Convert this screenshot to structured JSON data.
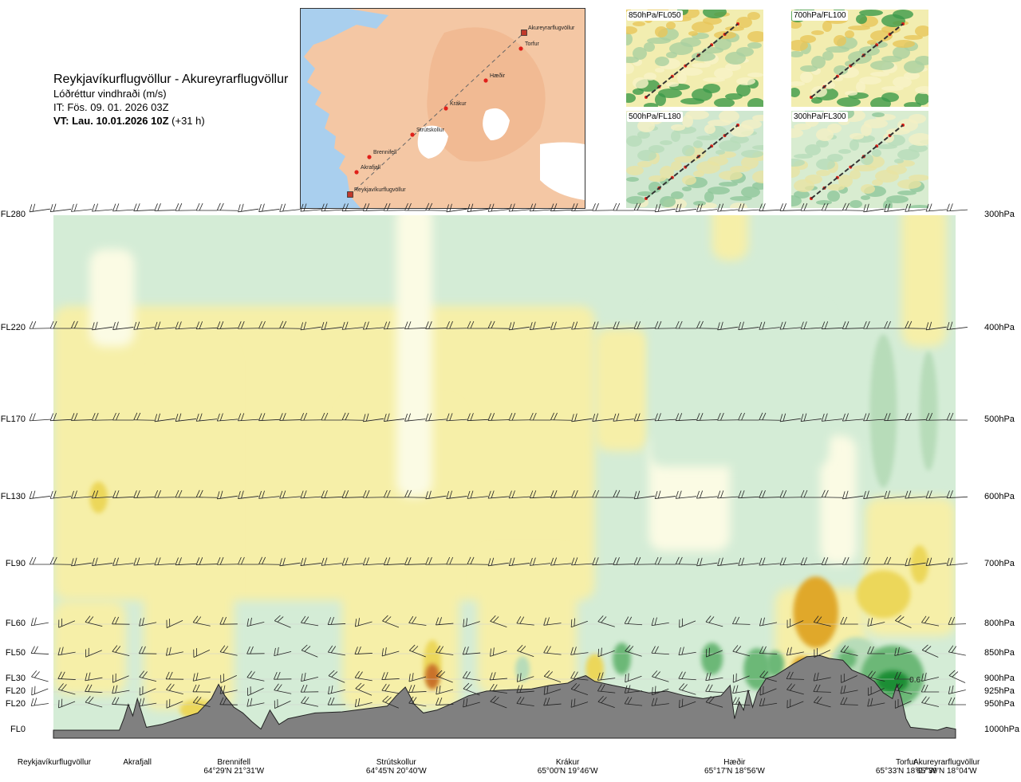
{
  "header": {
    "route": "Reykjavíkurflugvöllur - Akureyrarflugvöllur",
    "variable": "Lóðréttur vindhraði (m/s)",
    "init_time": "IT: Fös. 09. 01. 2026 03Z",
    "valid_label": "VT: Lau. 10.01.2026 10Z",
    "valid_offset": "(+31 h)"
  },
  "map": {
    "points": [
      {
        "name": "Akureyrarflugvöllur",
        "marker": "square"
      },
      {
        "name": "Torfur",
        "marker": "circle"
      },
      {
        "name": "Hæðir",
        "marker": "circle"
      },
      {
        "name": "Krákur",
        "marker": "circle"
      },
      {
        "name": "Strútskollur",
        "marker": "circle"
      },
      {
        "name": "Brennifell",
        "marker": "circle"
      },
      {
        "name": "Akrafjall",
        "marker": "circle"
      },
      {
        "name": "Reykjavíkurflugvöllur",
        "marker": "square"
      }
    ],
    "colors": {
      "land": "#f4c7a4",
      "sea": "#a9cfee",
      "glacier": "#ffffff",
      "route": "#666666",
      "point": "#e0201a"
    }
  },
  "thumbnails": [
    {
      "label": "850hPa/FL050"
    },
    {
      "label": "700hPa/FL100"
    },
    {
      "label": "500hPa/FL180"
    },
    {
      "label": "300hPa/FL300"
    }
  ],
  "chart_data": {
    "type": "heatmap",
    "title": "Lóðréttur vindhraði (m/s)",
    "left_levels": [
      "FL280",
      "FL220",
      "FL170",
      "FL130",
      "FL90",
      "FL60",
      "FL50",
      "FL30",
      "FL20",
      "FL20",
      "FL0"
    ],
    "right_levels": [
      "300hPa",
      "400hPa",
      "500hPa",
      "600hPa",
      "700hPa",
      "800hPa",
      "850hPa",
      "900hPa",
      "925hPa",
      "950hPa",
      "1000hPa"
    ],
    "pressure_hpa": [
      300,
      400,
      500,
      600,
      700,
      800,
      850,
      900,
      925,
      950,
      1000
    ],
    "stations": [
      {
        "name": "Reykjavíkurflugvöllur",
        "coord": "",
        "dist": 0.0
      },
      {
        "name": "Akrafjall",
        "coord": "",
        "dist": 0.093
      },
      {
        "name": "Brennifell",
        "coord": "64°29'N 21°31'W",
        "dist": 0.2
      },
      {
        "name": "Strútskollur",
        "coord": "64°45'N 20°40'W",
        "dist": 0.38
      },
      {
        "name": "Krákur",
        "coord": "65°00'N 19°46'W",
        "dist": 0.57
      },
      {
        "name": "Hæðir",
        "coord": "65°17'N 18°56'W",
        "dist": 0.755
      },
      {
        "name": "Torfur",
        "coord": "65°33'N 18°07'W",
        "dist": 0.945
      },
      {
        "name": "Akureyrarflugvöllur",
        "coord": "65°39'N 18°04'W",
        "dist": 0.99
      }
    ],
    "annotations": [
      {
        "text": "0.6",
        "dist": 0.955,
        "pressure_hpa": 900
      }
    ],
    "colors": {
      "strong_down": "#1e8e35",
      "mod_down": "#6cb877",
      "weak_down": "#b7dcb9",
      "very_weak_down": "#d4ecd6",
      "near_zero": "#fbfbe4",
      "weak_up": "#f6efa8",
      "mod_up": "#ecd75a",
      "strong_up": "#e0a82a",
      "very_strong_up": "#c9722a",
      "terrain": "#808080"
    },
    "terrain_profile": [
      [
        0.0,
        0.0
      ],
      [
        0.073,
        0.0
      ],
      [
        0.078,
        0.2
      ],
      [
        0.083,
        0.45
      ],
      [
        0.088,
        0.25
      ],
      [
        0.093,
        0.55
      ],
      [
        0.098,
        0.3
      ],
      [
        0.103,
        0.05
      ],
      [
        0.12,
        0.1
      ],
      [
        0.14,
        0.2
      ],
      [
        0.16,
        0.3
      ],
      [
        0.175,
        0.55
      ],
      [
        0.183,
        0.8
      ],
      [
        0.19,
        0.6
      ],
      [
        0.2,
        0.4
      ],
      [
        0.21,
        0.3
      ],
      [
        0.22,
        0.15
      ],
      [
        0.23,
        0.02
      ],
      [
        0.24,
        0.35
      ],
      [
        0.25,
        0.1
      ],
      [
        0.26,
        0.2
      ],
      [
        0.29,
        0.3
      ],
      [
        0.32,
        0.32
      ],
      [
        0.35,
        0.38
      ],
      [
        0.37,
        0.42
      ],
      [
        0.38,
        0.6
      ],
      [
        0.39,
        0.75
      ],
      [
        0.4,
        0.45
      ],
      [
        0.41,
        0.3
      ],
      [
        0.425,
        0.35
      ],
      [
        0.44,
        0.45
      ],
      [
        0.46,
        0.6
      ],
      [
        0.48,
        0.68
      ],
      [
        0.5,
        0.7
      ],
      [
        0.53,
        0.72
      ],
      [
        0.55,
        0.78
      ],
      [
        0.57,
        0.82
      ],
      [
        0.58,
        0.9
      ],
      [
        0.59,
        0.95
      ],
      [
        0.6,
        0.85
      ],
      [
        0.62,
        0.78
      ],
      [
        0.64,
        0.72
      ],
      [
        0.66,
        0.65
      ],
      [
        0.68,
        0.68
      ],
      [
        0.7,
        0.6
      ],
      [
        0.72,
        0.55
      ],
      [
        0.74,
        0.6
      ],
      [
        0.75,
        0.78
      ],
      [
        0.755,
        0.2
      ],
      [
        0.76,
        0.5
      ],
      [
        0.765,
        0.35
      ],
      [
        0.77,
        0.7
      ],
      [
        0.775,
        0.4
      ],
      [
        0.78,
        0.65
      ],
      [
        0.79,
        0.9
      ],
      [
        0.8,
        0.95
      ],
      [
        0.81,
        1.05
      ],
      [
        0.82,
        1.15
      ],
      [
        0.835,
        1.28
      ],
      [
        0.85,
        1.3
      ],
      [
        0.86,
        1.25
      ],
      [
        0.875,
        1.22
      ],
      [
        0.885,
        1.05
      ],
      [
        0.9,
        0.95
      ],
      [
        0.91,
        0.85
      ],
      [
        0.92,
        0.65
      ],
      [
        0.93,
        0.55
      ],
      [
        0.935,
        0.8
      ],
      [
        0.94,
        0.55
      ],
      [
        0.945,
        0.2
      ],
      [
        0.95,
        0.05
      ],
      [
        0.98,
        0.0
      ],
      [
        0.99,
        0.05
      ],
      [
        1.0,
        0.02
      ]
    ],
    "velocity_blobs": [
      {
        "dist": 0.93,
        "pressure_hpa": 905,
        "rx": 0.018,
        "rp": 22,
        "w": -0.6
      },
      {
        "dist": 0.93,
        "pressure_hpa": 895,
        "rx": 0.035,
        "rp": 60,
        "w": -0.3
      },
      {
        "dist": 0.88,
        "pressure_hpa": 860,
        "rx": 0.01,
        "rp": 18,
        "w": -0.35
      },
      {
        "dist": 0.89,
        "pressure_hpa": 880,
        "rx": 0.03,
        "rp": 60,
        "w": -0.15
      },
      {
        "dist": 0.78,
        "pressure_hpa": 880,
        "rx": 0.015,
        "rp": 40,
        "w": -0.3
      },
      {
        "dist": 0.8,
        "pressure_hpa": 870,
        "rx": 0.01,
        "rp": 25,
        "w": -0.3
      },
      {
        "dist": 0.73,
        "pressure_hpa": 860,
        "rx": 0.012,
        "rp": 30,
        "w": -0.3
      },
      {
        "dist": 0.63,
        "pressure_hpa": 860,
        "rx": 0.01,
        "rp": 30,
        "w": -0.25
      },
      {
        "dist": 0.52,
        "pressure_hpa": 880,
        "rx": 0.008,
        "rp": 25,
        "w": -0.2
      },
      {
        "dist": 0.42,
        "pressure_hpa": 895,
        "rx": 0.008,
        "rp": 25,
        "w": 0.55
      },
      {
        "dist": 0.42,
        "pressure_hpa": 870,
        "rx": 0.01,
        "rp": 45,
        "w": 0.3
      },
      {
        "dist": 0.83,
        "pressure_hpa": 880,
        "rx": 0.012,
        "rp": 25,
        "w": 0.4
      },
      {
        "dist": 0.845,
        "pressure_hpa": 780,
        "rx": 0.025,
        "rp": 60,
        "w": 0.35
      },
      {
        "dist": 0.92,
        "pressure_hpa": 750,
        "rx": 0.03,
        "rp": 40,
        "w": 0.3
      },
      {
        "dist": 0.96,
        "pressure_hpa": 700,
        "rx": 0.01,
        "rp": 30,
        "w": 0.3
      },
      {
        "dist": 0.05,
        "pressure_hpa": 600,
        "rx": 0.01,
        "rp": 22,
        "w": 0.3
      },
      {
        "dist": 0.92,
        "pressure_hpa": 490,
        "rx": 0.015,
        "rp": 90,
        "w": -0.2
      },
      {
        "dist": 0.97,
        "pressure_hpa": 490,
        "rx": 0.01,
        "rp": 70,
        "w": -0.2
      },
      {
        "dist": 0.6,
        "pressure_hpa": 880,
        "rx": 0.01,
        "rp": 30,
        "w": 0.25
      },
      {
        "dist": 0.16,
        "pressure_hpa": 960,
        "rx": 0.02,
        "rp": 20,
        "w": 0.25
      }
    ]
  }
}
